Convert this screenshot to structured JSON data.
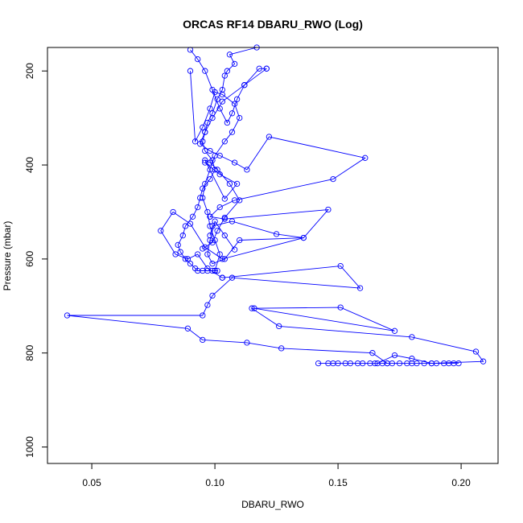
{
  "chart_data": {
    "type": "line",
    "title": "ORCAS RF14 DBARU_RWO (Log)",
    "xlabel": "DBARU_RWO",
    "ylabel": "Pressure (mbar)",
    "xlim": [
      0.032,
      0.215
    ],
    "ylim": [
      1035,
      150
    ],
    "y_reversed": true,
    "x_ticks": [
      0.05,
      0.1,
      0.15,
      0.2
    ],
    "x_tick_labels": [
      "0.05",
      "0.10",
      "0.15",
      "0.20"
    ],
    "y_ticks": [
      200,
      400,
      600,
      800,
      1000
    ],
    "y_tick_labels": [
      "200",
      "400",
      "600",
      "800",
      "1000"
    ],
    "grid": false,
    "legend": "none",
    "marker": "open-circle",
    "series_color": "#0000ff",
    "series": [
      {
        "x": [
          0.117,
          0.106,
          0.108,
          0.105,
          0.104,
          0.103,
          0.101,
          0.099,
          0.097,
          0.096,
          0.095,
          0.096,
          0.099,
          0.1,
          0.098,
          0.095,
          0.094,
          0.093,
          0.091,
          0.088,
          0.087,
          0.085,
          0.086,
          0.088,
          0.09,
          0.092,
          0.093,
          0.095,
          0.097,
          0.099,
          0.1,
          0.101,
          0.1
        ],
        "y": [
          150,
          165,
          185,
          200,
          210,
          240,
          260,
          290,
          310,
          330,
          350,
          370,
          390,
          410,
          430,
          450,
          470,
          490,
          510,
          530,
          550,
          570,
          585,
          600,
          610,
          620,
          625,
          625,
          625,
          625,
          625,
          625,
          625
        ]
      },
      {
        "x": [
          0.1,
          0.102,
          0.1,
          0.098,
          0.097,
          0.095,
          0.096,
          0.098,
          0.1,
          0.104,
          0.107,
          0.11,
          0.108,
          0.103,
          0.1,
          0.098,
          0.095,
          0.092,
          0.09
        ],
        "y": [
          625,
          590,
          560,
          530,
          500,
          470,
          440,
          410,
          380,
          350,
          330,
          300,
          270,
          250,
          245,
          280,
          320,
          350,
          200
        ]
      },
      {
        "x": [
          0.09,
          0.093,
          0.096,
          0.099,
          0.102,
          0.105,
          0.107,
          0.109,
          0.112,
          0.118,
          0.121
        ],
        "y": [
          155,
          175,
          200,
          240,
          280,
          310,
          290,
          260,
          230,
          195,
          195
        ]
      },
      {
        "x": [
          0.121,
          0.112,
          0.103,
          0.099,
          0.096,
          0.094,
          0.098,
          0.102,
          0.108,
          0.113,
          0.122,
          0.161,
          0.148,
          0.108,
          0.102,
          0.098
        ],
        "y": [
          195,
          230,
          265,
          300,
          330,
          355,
          370,
          380,
          395,
          410,
          340,
          385,
          430,
          475,
          490,
          510
        ]
      },
      {
        "x": [
          0.098,
          0.104,
          0.146,
          0.136,
          0.103,
          0.096,
          0.09,
          0.083,
          0.078,
          0.084,
          0.089,
          0.093,
          0.097,
          0.103
        ],
        "y": [
          510,
          515,
          495,
          555,
          600,
          575,
          525,
          500,
          540,
          590,
          600,
          590,
          620,
          640
        ]
      },
      {
        "x": [
          0.103,
          0.151,
          0.159,
          0.107,
          0.099,
          0.097,
          0.095,
          0.04,
          0.089,
          0.095,
          0.113,
          0.127,
          0.164,
          0.17
        ],
        "y": [
          640,
          615,
          662,
          640,
          678,
          698,
          720,
          720,
          748,
          772,
          778,
          790,
          800,
          822
        ]
      },
      {
        "x": [
          0.116,
          0.173,
          0.151,
          0.115,
          0.126,
          0.18,
          0.206,
          0.209,
          0.188,
          0.18,
          0.173,
          0.166
        ],
        "y": [
          705,
          753,
          703,
          705,
          743,
          766,
          797,
          818,
          822,
          812,
          805,
          822
        ]
      },
      {
        "x": [
          0.142,
          0.146,
          0.148,
          0.15,
          0.153,
          0.155,
          0.158,
          0.16,
          0.163,
          0.165,
          0.168,
          0.17,
          0.172,
          0.175,
          0.178,
          0.18,
          0.182,
          0.185,
          0.188,
          0.19,
          0.193,
          0.195,
          0.197,
          0.199
        ],
        "y": [
          822,
          822,
          822,
          822,
          822,
          822,
          822,
          822,
          822,
          822,
          822,
          822,
          822,
          822,
          822,
          822,
          822,
          822,
          822,
          822,
          822,
          822,
          822,
          822
        ]
      },
      {
        "x": [
          0.108,
          0.104,
          0.1,
          0.098,
          0.097,
          0.099,
          0.104,
          0.11,
          0.136,
          0.125,
          0.107,
          0.099,
          0.098
        ],
        "y": [
          580,
          550,
          520,
          560,
          590,
          610,
          600,
          560,
          555,
          547,
          520,
          530,
          550
        ]
      },
      {
        "x": [
          0.095,
          0.099,
          0.101,
          0.104,
          0.11,
          0.106,
          0.101,
          0.098,
          0.096,
          0.104,
          0.109,
          0.102,
          0.096
        ],
        "y": [
          578,
          565,
          540,
          512,
          475,
          440,
          410,
          395,
          390,
          472,
          440,
          420,
          395
        ]
      }
    ]
  }
}
